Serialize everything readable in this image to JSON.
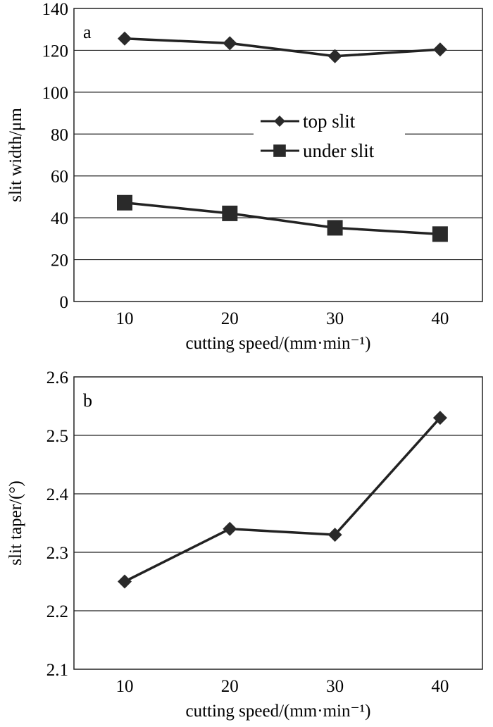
{
  "chart_data": [
    {
      "type": "line",
      "panel_label": "a",
      "xlabel": "cutting speed/(mm·min⁻¹)",
      "ylabel": "slit width/μm",
      "x": [
        10,
        20,
        30,
        40
      ],
      "xticks": [
        "10",
        "20",
        "30",
        "40"
      ],
      "ylim": [
        0,
        140
      ],
      "yticks": [
        "0",
        "20",
        "40",
        "60",
        "80",
        "100",
        "120",
        "140"
      ],
      "grid": true,
      "legend_placement": "center-right",
      "series": [
        {
          "name": "top slit",
          "marker": "diamond",
          "values": [
            125.6,
            123.4,
            117.2,
            120.4
          ]
        },
        {
          "name": "under slit",
          "marker": "square",
          "values": [
            47.2,
            42.1,
            35.2,
            32.2
          ]
        }
      ]
    },
    {
      "type": "line",
      "panel_label": "b",
      "xlabel": "cutting speed/(mm·min⁻¹)",
      "ylabel": "slit taper/(°)",
      "x": [
        10,
        20,
        30,
        40
      ],
      "xticks": [
        "10",
        "20",
        "30",
        "40"
      ],
      "ylim": [
        2.1,
        2.6
      ],
      "yticks": [
        "2.1",
        "2.2",
        "2.3",
        "2.4",
        "2.5",
        "2.6"
      ],
      "grid": true,
      "series": [
        {
          "marker": "diamond",
          "values": [
            2.25,
            2.34,
            2.33,
            2.53
          ]
        }
      ]
    }
  ]
}
